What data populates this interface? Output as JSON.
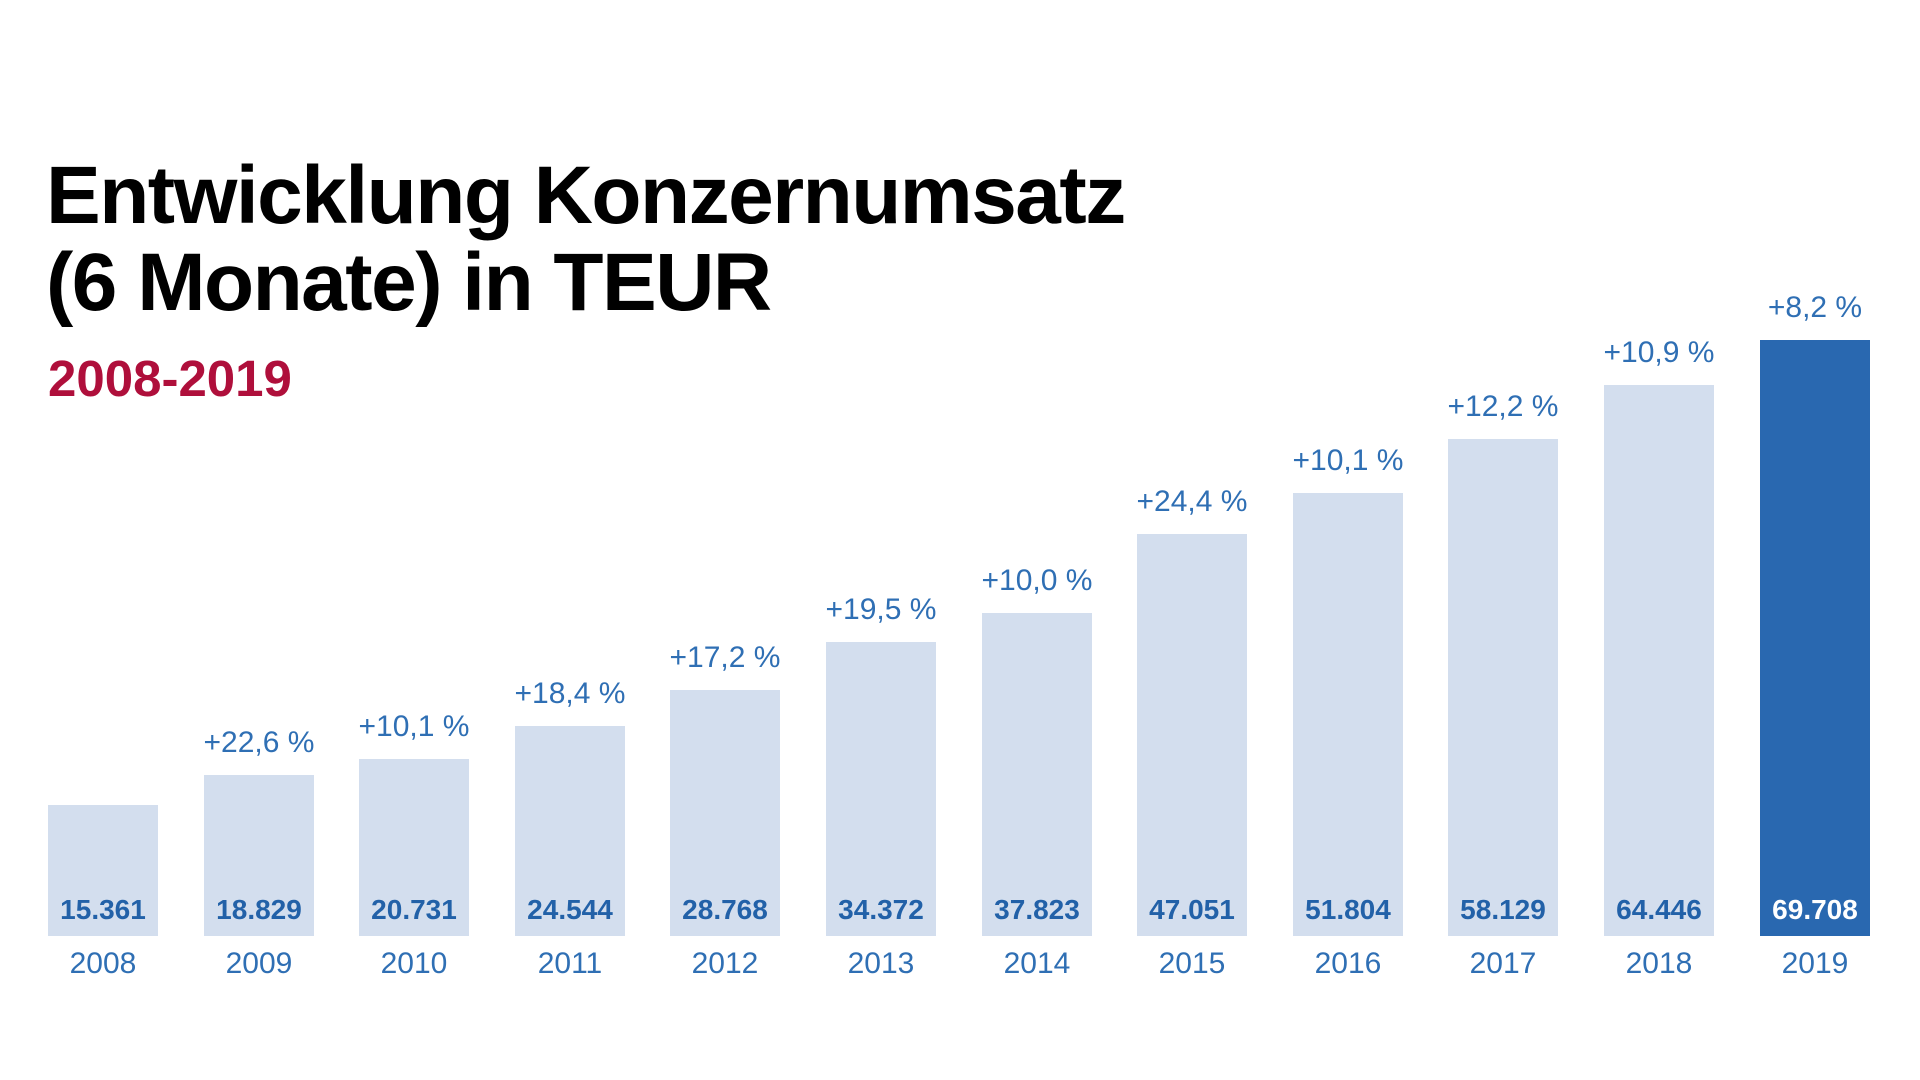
{
  "page": {
    "title_line1": "Entwicklung Konzernumsatz",
    "title_line2": "(6 Monate) in TEUR",
    "subtitle": "2008-2019"
  },
  "colors": {
    "title": "#000000",
    "subtitle_red": "#AF0F3B",
    "bar_light": "#D3DEEE",
    "bar_highlight": "#2968B0",
    "value_text": "#2261A8",
    "value_text_highlight": "#FFFFFF",
    "label_blue": "#2F6FB4",
    "background": "#FFFFFF"
  },
  "chart_data": {
    "type": "bar",
    "title": "Entwicklung Konzernumsatz (6 Monate) in TEUR",
    "subtitle": "2008-2019",
    "unit": "TEUR",
    "xlabel": "",
    "ylabel": "",
    "grid": false,
    "legend": null,
    "ylim": [
      0,
      72000
    ],
    "categories": [
      "2008",
      "2009",
      "2010",
      "2011",
      "2012",
      "2013",
      "2014",
      "2015",
      "2016",
      "2017",
      "2018",
      "2019"
    ],
    "values": [
      15361,
      18829,
      20731,
      24544,
      28768,
      34372,
      37823,
      47051,
      51804,
      58129,
      64446,
      69708
    ],
    "value_labels": [
      "15.361",
      "18.829",
      "20.731",
      "24.544",
      "28.768",
      "34.372",
      "37.823",
      "47.051",
      "51.804",
      "58.129",
      "64.446",
      "69.708"
    ],
    "pct_change_labels": [
      null,
      "+22,6 %",
      "+10,1 %",
      "+18,4 %",
      "+17,2 %",
      "+19,5 %",
      "+10,0 %",
      "+24,4 %",
      "+10,1 %",
      "+12,2 %",
      "+10,9 %",
      "+8,2 %"
    ],
    "highlight_index": 11
  }
}
